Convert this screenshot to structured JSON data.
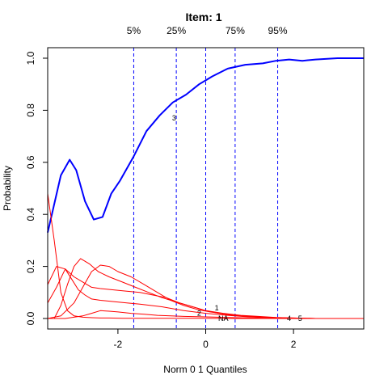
{
  "chart_data": {
    "type": "line",
    "title": "Item:  1",
    "xlabel": "Norm 0 1 Quantiles",
    "ylabel": "Probability",
    "xlim": [
      -3.6,
      3.6
    ],
    "ylim": [
      0,
      1
    ],
    "x_ticks": [
      -2,
      0,
      2
    ],
    "y_ticks": [
      0.0,
      0.2,
      0.4,
      0.6,
      0.8,
      1.0
    ],
    "x_tick_labels": [
      "-2",
      "0",
      "2"
    ],
    "y_tick_labels": [
      "0.0",
      "0.2",
      "0.4",
      "0.6",
      "0.8",
      "1.0"
    ],
    "quantile_lines": [
      {
        "label": "5%",
        "x": -1.64
      },
      {
        "label": "25%",
        "x": -0.67
      },
      {
        "label": "",
        "x": 0.0
      },
      {
        "label": "75%",
        "x": 0.67
      },
      {
        "label": "95%",
        "x": 1.64
      }
    ],
    "series": [
      {
        "label": "3",
        "color": "#0000ff",
        "width": 2,
        "label_at": {
          "x": -0.72,
          "y": 0.77
        },
        "x": [
          -3.6,
          -3.3,
          -3.1,
          -2.95,
          -2.75,
          -2.55,
          -2.35,
          -2.15,
          -1.95,
          -1.65,
          -1.35,
          -1.05,
          -0.75,
          -0.45,
          -0.15,
          0.15,
          0.5,
          0.9,
          1.3,
          1.6,
          1.9,
          2.2,
          2.5,
          3.0,
          3.6
        ],
        "y": [
          0.33,
          0.55,
          0.61,
          0.57,
          0.45,
          0.38,
          0.39,
          0.48,
          0.53,
          0.62,
          0.72,
          0.78,
          0.83,
          0.86,
          0.9,
          0.93,
          0.96,
          0.975,
          0.98,
          0.99,
          0.995,
          0.99,
          0.995,
          1.0,
          1.0
        ]
      },
      {
        "label": "",
        "color": "#ff0000",
        "width": 1,
        "x": [
          -3.6,
          -3.45,
          -3.3,
          -3.15,
          -3.0,
          -2.8,
          -2.6,
          -2.4,
          -2.2,
          -1.9,
          -1.5,
          -1.0,
          -0.5,
          0.0,
          0.5,
          1.0,
          1.5,
          2.0,
          2.5,
          3.6
        ],
        "y": [
          0.48,
          0.3,
          0.1,
          0.03,
          0.01,
          0.005,
          0.003,
          0.002,
          0.002,
          0.001,
          0.001,
          0.001,
          0.001,
          0.001,
          0.0,
          0.0,
          0.0,
          0.0,
          0.0,
          0.0
        ]
      },
      {
        "label": "",
        "color": "#ff0000",
        "width": 1,
        "x": [
          -3.6,
          -3.4,
          -3.2,
          -3.05,
          -2.9,
          -2.75,
          -2.6,
          -2.4,
          -2.1,
          -1.8,
          -1.5,
          -1.0,
          -0.5,
          0.0,
          0.5,
          1.0,
          1.5,
          2.0,
          2.5,
          3.6
        ],
        "y": [
          0.13,
          0.2,
          0.19,
          0.15,
          0.11,
          0.09,
          0.075,
          0.07,
          0.065,
          0.06,
          0.055,
          0.045,
          0.03,
          0.02,
          0.012,
          0.006,
          0.003,
          0.001,
          0.0,
          0.0
        ]
      },
      {
        "label": "",
        "color": "#ff0000",
        "width": 1,
        "x": [
          -3.6,
          -3.4,
          -3.2,
          -3.0,
          -2.8,
          -2.6,
          -2.4,
          -2.1,
          -1.8,
          -1.5,
          -1.2,
          -0.9,
          -0.6,
          -0.3,
          0.0,
          0.3,
          0.6,
          0.9,
          1.2,
          1.5,
          2.0,
          2.5,
          3.6
        ],
        "y": [
          0.06,
          0.12,
          0.19,
          0.16,
          0.14,
          0.12,
          0.115,
          0.11,
          0.105,
          0.1,
          0.09,
          0.08,
          0.06,
          0.045,
          0.03,
          0.02,
          0.012,
          0.008,
          0.005,
          0.003,
          0.001,
          0.0,
          0.0
        ]
      },
      {
        "label": "",
        "color": "#ff0000",
        "width": 1,
        "x": [
          -3.45,
          -3.3,
          -3.15,
          -3.0,
          -2.85,
          -2.65,
          -2.45,
          -2.2,
          -1.9,
          -1.6,
          -1.3,
          -1.0,
          -0.7,
          -0.4,
          0.0,
          0.4,
          0.8,
          1.2,
          1.6,
          2.0,
          2.5,
          3.6
        ],
        "y": [
          0.0,
          0.05,
          0.13,
          0.2,
          0.23,
          0.21,
          0.18,
          0.16,
          0.14,
          0.12,
          0.1,
          0.08,
          0.065,
          0.05,
          0.03,
          0.02,
          0.012,
          0.008,
          0.004,
          0.002,
          0.0,
          0.0
        ]
      },
      {
        "label": "",
        "color": "#ff0000",
        "width": 1,
        "x": [
          -3.6,
          -3.3,
          -3.0,
          -2.8,
          -2.6,
          -2.4,
          -2.2,
          -2.0,
          -1.7,
          -1.4,
          -1.1,
          -0.8,
          -0.5,
          -0.2,
          0.1,
          0.4,
          0.7,
          1.0,
          1.5,
          2.0,
          2.5,
          3.6
        ],
        "y": [
          0.0,
          0.01,
          0.06,
          0.12,
          0.18,
          0.205,
          0.2,
          0.18,
          0.16,
          0.13,
          0.1,
          0.07,
          0.05,
          0.035,
          0.025,
          0.018,
          0.012,
          0.008,
          0.004,
          0.002,
          0.0,
          0.0
        ]
      },
      {
        "label": "",
        "color": "#ff0000",
        "width": 1,
        "x": [
          -3.6,
          -3.2,
          -2.8,
          -2.6,
          -2.4,
          -2.2,
          -2.0,
          -1.7,
          -1.4,
          -1.1,
          -0.8,
          -0.5,
          -0.2,
          0.1,
          0.5,
          1.0,
          1.5,
          2.0,
          2.5,
          3.6
        ],
        "y": [
          0.0,
          0.0,
          0.01,
          0.02,
          0.03,
          0.028,
          0.025,
          0.02,
          0.016,
          0.012,
          0.01,
          0.008,
          0.007,
          0.006,
          0.004,
          0.002,
          0.001,
          0.0,
          0.0,
          0.0
        ]
      }
    ],
    "point_labels": [
      {
        "text": "1",
        "x": 0.25,
        "y": 0.04
      },
      {
        "text": "2",
        "x": -0.15,
        "y": 0.02
      },
      {
        "text": "NA",
        "x": 0.4,
        "y": 0.0
      },
      {
        "text": "4",
        "x": 1.9,
        "y": 0.0
      },
      {
        "text": "5",
        "x": 2.15,
        "y": 0.0
      }
    ]
  }
}
